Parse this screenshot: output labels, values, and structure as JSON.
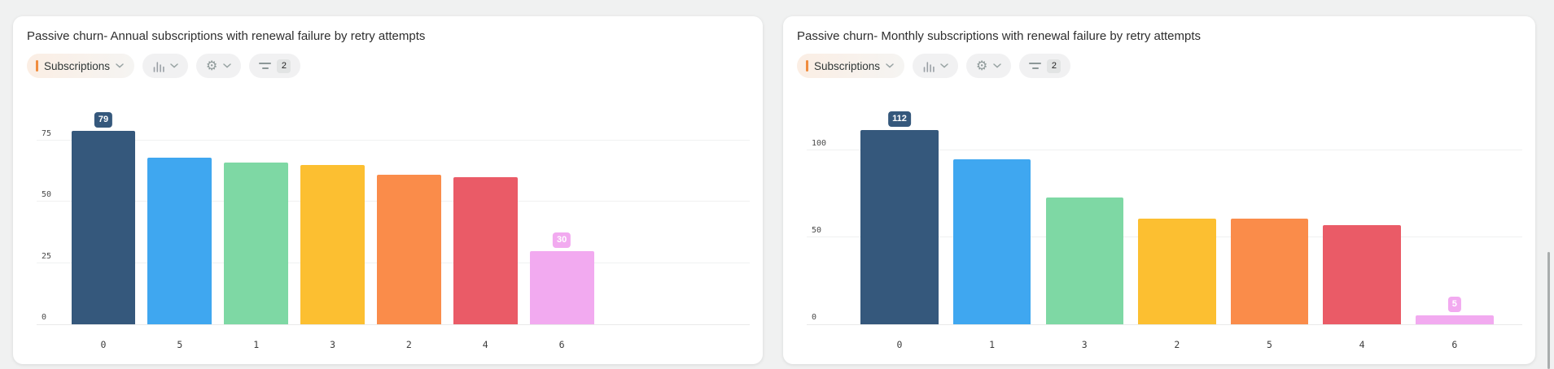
{
  "cards": [
    {
      "toolbar": {
        "metric_label": "Subscriptions",
        "metric_accent_color": "#f08c3e",
        "chart_type_icon": "bar-chart",
        "settings_icon": "gear",
        "filter_icon": "filter-lines",
        "filter_count": "2"
      }
    },
    {
      "toolbar": {
        "metric_label": "Subscriptions",
        "metric_accent_color": "#f08c3e",
        "chart_type_icon": "bar-chart",
        "settings_icon": "gear",
        "filter_icon": "filter-lines",
        "filter_count": "2"
      }
    }
  ],
  "chart_data": [
    {
      "type": "bar",
      "title": "Passive churn- Annual subscriptions with renewal failure by retry attempts",
      "xlabel": "",
      "ylabel": "",
      "categories": [
        "0",
        "5",
        "1",
        "3",
        "2",
        "4",
        "6"
      ],
      "values": [
        79,
        68,
        66,
        65,
        61,
        60,
        30
      ],
      "bar_colors": [
        "#35587C",
        "#3FA7F0",
        "#7ED8A4",
        "#FCBF31",
        "#FA8C4A",
        "#EA5B67",
        "#F2AAF0"
      ],
      "yticks": [
        0,
        25,
        50,
        75
      ],
      "ylim": [
        0,
        83
      ],
      "grid": true,
      "legend": false,
      "data_labels": [
        {
          "index": 0,
          "text": "79",
          "bg": "#35587C",
          "fg": "#FFFFFF"
        },
        {
          "index": 6,
          "text": "30",
          "bg": "#F2AAF0",
          "fg": "#FFFFFF"
        }
      ]
    },
    {
      "type": "bar",
      "title": "Passive churn- Monthly subscriptions with renewal failure by retry attempts",
      "xlabel": "",
      "ylabel": "",
      "categories": [
        "0",
        "1",
        "3",
        "2",
        "5",
        "4",
        "6"
      ],
      "values": [
        112,
        95,
        73,
        61,
        61,
        57,
        5
      ],
      "bar_colors": [
        "#35587C",
        "#3FA7F0",
        "#7ED8A4",
        "#FCBF31",
        "#FA8C4A",
        "#EA5B67",
        "#F2AAF0"
      ],
      "yticks": [
        0,
        50,
        100
      ],
      "ylim": [
        0,
        117
      ],
      "grid": true,
      "legend": false,
      "data_labels": [
        {
          "index": 0,
          "text": "112",
          "bg": "#35587C",
          "fg": "#FFFFFF"
        },
        {
          "index": 6,
          "text": "5",
          "bg": "#F2AAF0",
          "fg": "#FFFFFF"
        }
      ]
    }
  ]
}
